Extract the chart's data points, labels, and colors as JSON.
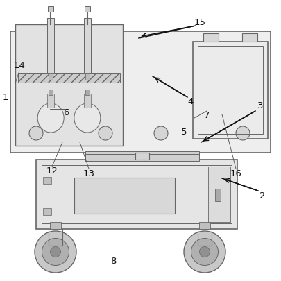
{
  "line_color": "#666666",
  "arrow_color": "#111111",
  "label_color": "#111111",
  "board_fc": "#eeeeee",
  "unit_fc": "#e4e4e4",
  "cart_fc": "#e8e8e8",
  "container_fc": "#ebebeb"
}
